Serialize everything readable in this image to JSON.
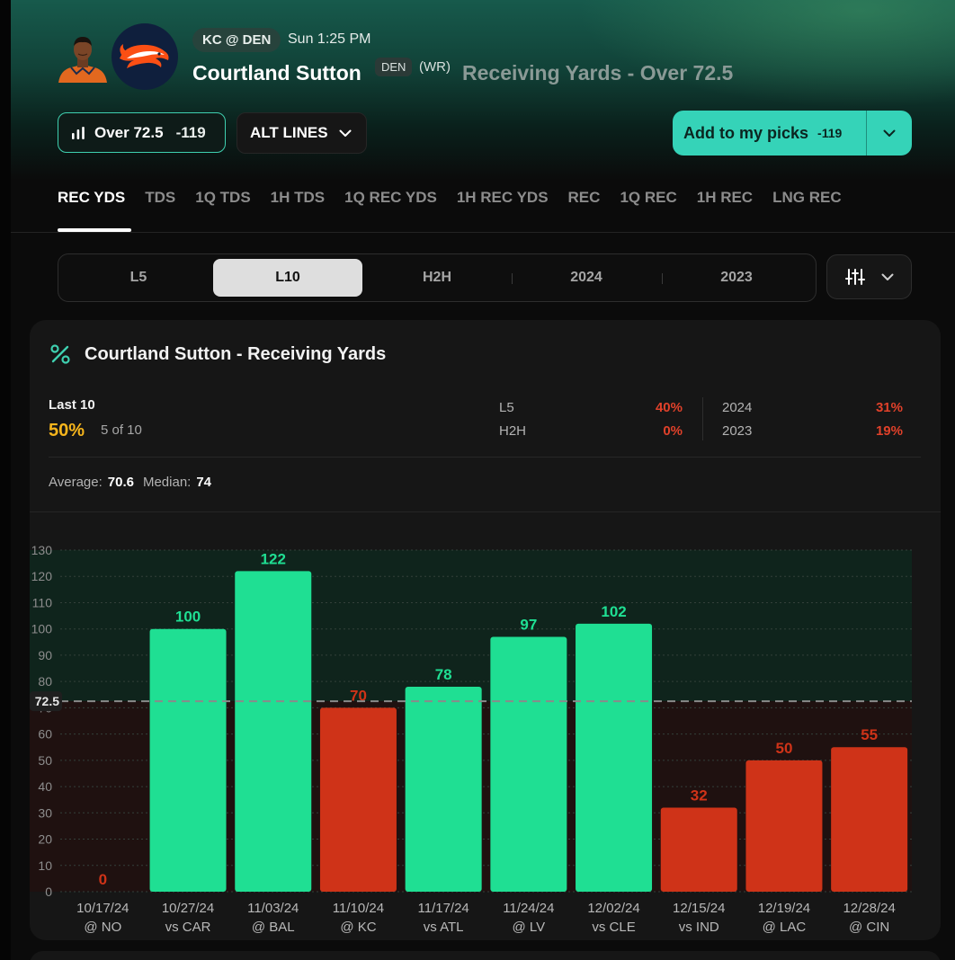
{
  "header": {
    "game": "KC @ DEN",
    "game_time": "Sun 1:25 PM",
    "player_name": "Courtland Sutton",
    "team": "DEN",
    "position": "(WR)",
    "market": "Receiving Yards - Over 72.5",
    "over_line": "Over 72.5",
    "over_odds": "-119",
    "alt_lines": "ALT LINES",
    "add_picks": "Add to my picks",
    "add_picks_odds": "-119",
    "colors": {
      "accent": "#35d3b8",
      "over": "#1fdf93",
      "under": "#cf3318",
      "hit_rate": "#f6b51c"
    }
  },
  "tabs": [
    "REC YDS",
    "TDS",
    "1Q TDS",
    "1H TDS",
    "1Q REC YDS",
    "1H REC YDS",
    "REC",
    "1Q REC",
    "1H REC",
    "LNG REC"
  ],
  "active_tab": "REC YDS",
  "range_filters": [
    "L5",
    "L10",
    "H2H",
    "2024",
    "2023"
  ],
  "active_range": "L10",
  "card": {
    "title": "Courtland Sutton - Receiving Yards",
    "last_label": "Last 10",
    "hit_rate": "50%",
    "hit_count": "5 of 10",
    "stats": [
      {
        "label": "L5",
        "value": "40%"
      },
      {
        "label": "H2H",
        "value": "0%"
      },
      {
        "label": "2024",
        "value": "31%"
      },
      {
        "label": "2023",
        "value": "19%"
      }
    ],
    "average_label": "Average:",
    "average": "70.6",
    "median_label": "Median:",
    "median": "74"
  },
  "chart_data": {
    "type": "bar",
    "line": 72.5,
    "line_label": "72.5",
    "ylim": [
      0,
      130
    ],
    "yticks": [
      0,
      10,
      20,
      30,
      40,
      50,
      60,
      70,
      80,
      90,
      100,
      110,
      120,
      130
    ],
    "categories": [
      {
        "date": "10/17/24",
        "opp": "@ NO"
      },
      {
        "date": "10/27/24",
        "opp": "vs CAR"
      },
      {
        "date": "11/03/24",
        "opp": "@ BAL"
      },
      {
        "date": "11/10/24",
        "opp": "@ KC"
      },
      {
        "date": "11/17/24",
        "opp": "vs ATL"
      },
      {
        "date": "11/24/24",
        "opp": "@ LV"
      },
      {
        "date": "12/02/24",
        "opp": "vs CLE"
      },
      {
        "date": "12/15/24",
        "opp": "vs IND"
      },
      {
        "date": "12/19/24",
        "opp": "@ LAC"
      },
      {
        "date": "12/28/24",
        "opp": "@ CIN"
      }
    ],
    "values": [
      0,
      100,
      122,
      70,
      78,
      97,
      102,
      32,
      50,
      55
    ]
  }
}
